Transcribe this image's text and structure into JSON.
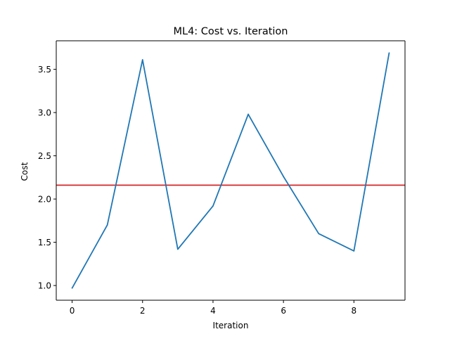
{
  "chart_data": {
    "type": "line",
    "title": "ML4: Cost vs. Iteration",
    "xlabel": "Iteration",
    "ylabel": "Cost",
    "xlim": [
      -0.45,
      9.45
    ],
    "ylim": [
      0.83,
      3.83
    ],
    "xticks": [
      0,
      2,
      4,
      6,
      8
    ],
    "yticks": [
      1.0,
      1.5,
      2.0,
      2.5,
      3.0,
      3.5
    ],
    "xtick_labels": [
      "0",
      "2",
      "4",
      "6",
      "8"
    ],
    "ytick_labels": [
      "1.0",
      "1.5",
      "2.0",
      "2.5",
      "3.0",
      "3.5"
    ],
    "grid": false,
    "series": [
      {
        "x": [
          0,
          1,
          2,
          3,
          4,
          5,
          6,
          7,
          8,
          9
        ],
        "values": [
          0.97,
          1.7,
          3.61,
          1.42,
          1.92,
          2.98,
          2.26,
          1.6,
          1.4,
          3.69
        ],
        "color": "#1f77b4"
      }
    ],
    "hlines": [
      {
        "y": 2.16,
        "color": "#d62728"
      }
    ]
  }
}
